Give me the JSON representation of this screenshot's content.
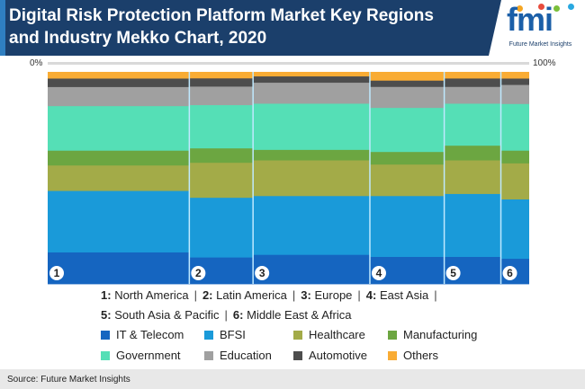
{
  "header": {
    "title": "Digital Risk Protection Platform Market Key Regions\nand Industry Mekko Chart, 2020",
    "logo": {
      "word": "fmi",
      "tagline": "Future Market Insights"
    }
  },
  "axis": {
    "left_label": "0%",
    "right_label": "100%"
  },
  "chart_data": {
    "type": "mekko",
    "title": "Digital Risk Protection Platform Market Key Regions and Industry Mekko Chart, 2020",
    "x_unit": "share of market (%)",
    "y_unit": "share within region (%)",
    "regions": [
      {
        "id": "1",
        "name": "North America",
        "width": 40
      },
      {
        "id": "2",
        "name": "Latin America",
        "width": 18
      },
      {
        "id": "3",
        "name": "Europe",
        "width": 33
      },
      {
        "id": "4",
        "name": "East Asia",
        "width": 21
      },
      {
        "id": "5",
        "name": "South Asia & Pacific",
        "width": 16
      },
      {
        "id": "6",
        "name": "Middle East & Africa",
        "width": 8
      }
    ],
    "segments": [
      {
        "name": "IT & Telecom",
        "color": "#1565c0",
        "values": [
          15,
          13,
          14,
          13,
          13,
          12
        ]
      },
      {
        "name": "BFSI",
        "color": "#1a9ad9",
        "values": [
          29,
          29,
          28,
          29,
          30,
          28
        ]
      },
      {
        "name": "Healthcare",
        "color": "#a3ab48",
        "values": [
          12,
          17,
          17,
          15,
          16,
          17
        ]
      },
      {
        "name": "Manufacturing",
        "color": "#6ca641",
        "values": [
          7,
          7,
          5,
          6,
          7,
          6
        ]
      },
      {
        "name": "Government",
        "color": "#55dfb6",
        "values": [
          21,
          21,
          22,
          21,
          20,
          22
        ]
      },
      {
        "name": "Education",
        "color": "#a0a0a0",
        "values": [
          9,
          9,
          10,
          10,
          8,
          9
        ]
      },
      {
        "name": "Automotive",
        "color": "#4d4d4d",
        "values": [
          4,
          4,
          3,
          3,
          4,
          3
        ]
      },
      {
        "name": "Others",
        "color": "#f9ac34",
        "values": [
          3,
          3,
          2,
          4,
          3,
          3
        ]
      }
    ],
    "ylim": [
      0,
      100
    ],
    "separator_color": "#bfe9ff",
    "legend_placement": "bottom"
  },
  "legend": {
    "regions_line1": [
      {
        "num": "1:",
        "name": "North America"
      },
      {
        "num": "2:",
        "name": "Latin America"
      },
      {
        "num": "3:",
        "name": "Europe"
      },
      {
        "num": "4:",
        "name": "East Asia"
      }
    ],
    "regions_line2": [
      {
        "num": "5:",
        "name": "South Asia & Pacific"
      },
      {
        "num": "6:",
        "name": "Middle East & Africa"
      }
    ],
    "separator": "|"
  },
  "footer": {
    "source": "Source: Future Market Insights"
  }
}
